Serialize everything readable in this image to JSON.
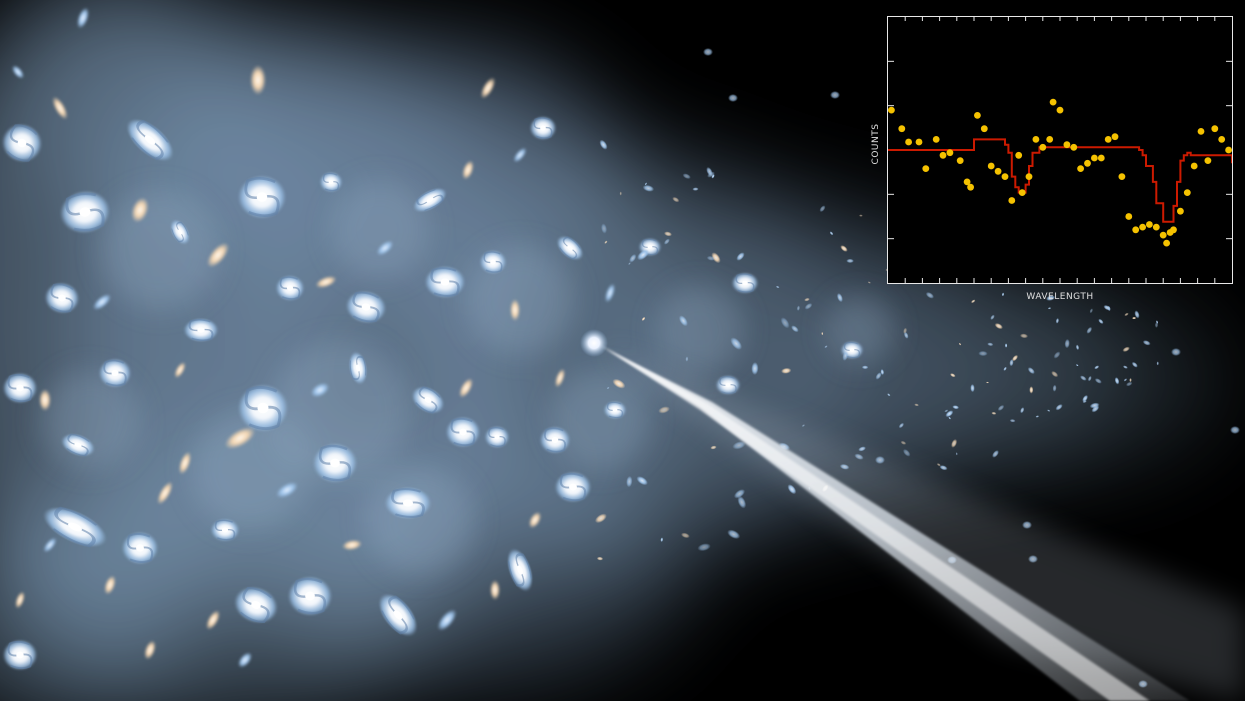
{
  "illustration": {
    "subject": "galaxies-and-quasar-beam",
    "colors": {
      "space": "#000000",
      "cloud": "#8aa9c9",
      "galaxy_white": "#f2f6fb",
      "galaxy_blue": "#9dc3ea",
      "galaxy_warm": "#f3d6b3",
      "beam": "#dfe7f0"
    }
  },
  "chart_data": {
    "type": "scatter",
    "title": "",
    "xlabel": "WAVELENGTH",
    "ylabel": "COUNTS",
    "xlim": [
      0,
      100
    ],
    "ylim": [
      0,
      100
    ],
    "grid": false,
    "tick_labels": false,
    "colors": {
      "points": "#f5c200",
      "model": "#cc1a00",
      "axes": "#e8e8e8"
    },
    "points": {
      "x": [
        1,
        4,
        6,
        9,
        11,
        14,
        16,
        18,
        21,
        23,
        24,
        26,
        28,
        30,
        32,
        34,
        36,
        38,
        39,
        41,
        43,
        45,
        47,
        48,
        50,
        52,
        54,
        56,
        58,
        60,
        62,
        64,
        66,
        68,
        70,
        72,
        74,
        76,
        78,
        80,
        81,
        82,
        83,
        85,
        87,
        89,
        91,
        93,
        95,
        97,
        99
      ],
      "y": [
        65,
        58,
        53,
        53,
        43,
        54,
        48,
        49,
        46,
        38,
        36,
        63,
        58,
        44,
        42,
        40,
        31,
        48,
        34,
        40,
        54,
        51,
        54,
        68,
        65,
        52,
        51,
        43,
        45,
        47,
        47,
        54,
        55,
        40,
        25,
        20,
        21,
        22,
        21,
        18,
        15,
        19,
        20,
        27,
        34,
        44,
        57,
        46,
        58,
        54,
        50
      ]
    },
    "model_curve": {
      "x": [
        0,
        25,
        34,
        35,
        36,
        37,
        38,
        39,
        40,
        41,
        42,
        44,
        70,
        73,
        74,
        75,
        77,
        78,
        80,
        82,
        83,
        84,
        85,
        86,
        87,
        88,
        100
      ],
      "y": [
        50,
        54,
        52,
        49,
        40,
        36,
        34,
        34,
        37,
        44,
        49,
        51,
        51,
        50,
        48,
        44,
        38,
        30,
        23,
        23,
        29,
        38,
        46,
        48,
        49,
        48,
        45
      ]
    }
  }
}
